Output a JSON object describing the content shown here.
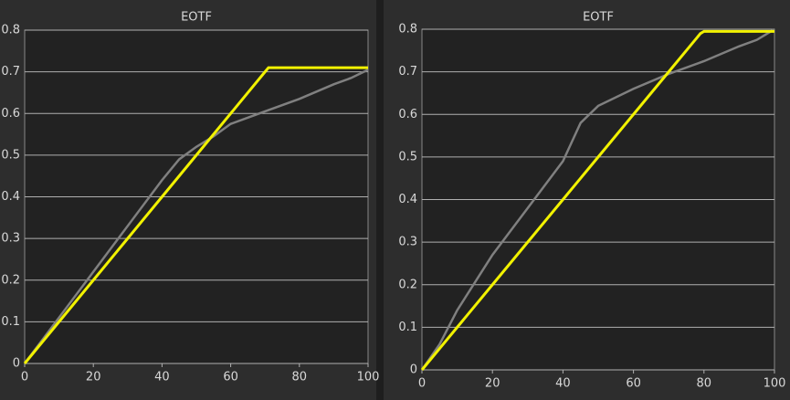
{
  "chart_data": [
    {
      "type": "line",
      "title": "EOTF",
      "xlim": [
        0,
        100
      ],
      "ylim": [
        0,
        0.8
      ],
      "xticks": [
        0,
        20,
        40,
        60,
        80,
        100
      ],
      "yticks": [
        0,
        0.1,
        0.2,
        0.3,
        0.4,
        0.5,
        0.6,
        0.7,
        0.8
      ],
      "grid": true,
      "series": [
        {
          "color": "#808080",
          "x": [
            0,
            10,
            20,
            30,
            40,
            45,
            50,
            55,
            60,
            70,
            80,
            90,
            95,
            100
          ],
          "values": [
            0,
            0.11,
            0.22,
            0.33,
            0.44,
            0.49,
            0.52,
            0.545,
            0.575,
            0.605,
            0.635,
            0.67,
            0.685,
            0.705
          ]
        },
        {
          "color": "#f2f200",
          "x": [
            0,
            10,
            20,
            30,
            40,
            50,
            60,
            70,
            71,
            100
          ],
          "values": [
            0,
            0.1,
            0.2,
            0.3,
            0.4,
            0.5,
            0.6,
            0.7,
            0.71,
            0.71
          ]
        }
      ]
    },
    {
      "type": "line",
      "title": "EOTF",
      "xlim": [
        0,
        100
      ],
      "ylim": [
        0,
        0.8
      ],
      "xticks": [
        0,
        20,
        40,
        60,
        80,
        100
      ],
      "yticks": [
        0,
        0.1,
        0.2,
        0.3,
        0.4,
        0.5,
        0.6,
        0.7,
        0.8
      ],
      "grid": true,
      "series": [
        {
          "color": "#808080",
          "x": [
            0,
            5,
            10,
            20,
            30,
            40,
            45,
            50,
            60,
            70,
            80,
            90,
            95,
            100
          ],
          "values": [
            0,
            0.06,
            0.14,
            0.27,
            0.38,
            0.49,
            0.58,
            0.62,
            0.66,
            0.695,
            0.725,
            0.76,
            0.775,
            0.8
          ]
        },
        {
          "color": "#f2f200",
          "x": [
            0,
            10,
            20,
            30,
            40,
            50,
            60,
            70,
            79,
            80,
            100
          ],
          "values": [
            0,
            0.1,
            0.2,
            0.3,
            0.4,
            0.5,
            0.6,
            0.7,
            0.79,
            0.795,
            0.795
          ]
        }
      ]
    }
  ]
}
